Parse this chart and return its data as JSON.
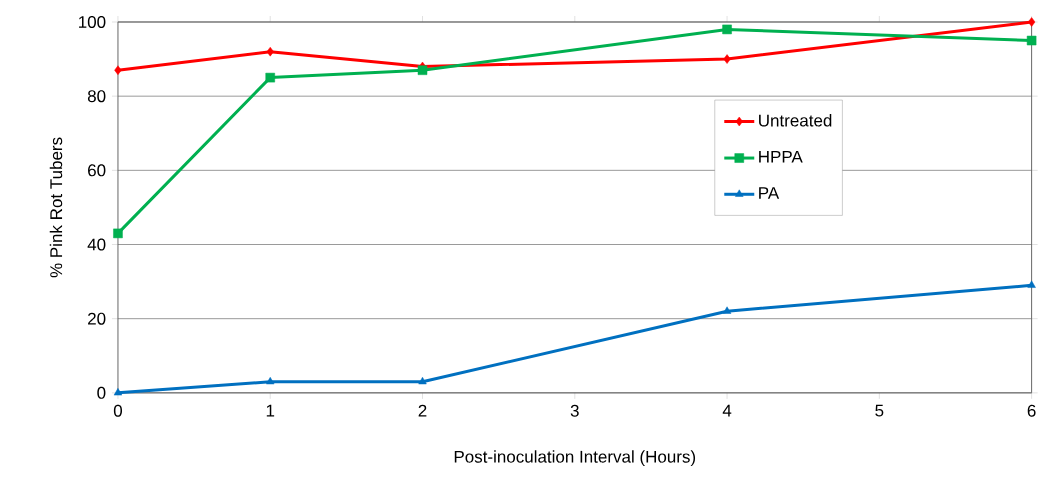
{
  "chart_data": {
    "type": "line",
    "xlabel": "Post-inoculation Interval (Hours)",
    "ylabel": "% Pink Rot Tubers",
    "x": [
      0,
      1,
      2,
      4,
      6
    ],
    "series": [
      {
        "name": "Untreated",
        "color": "#ff0000",
        "marker": "diamond",
        "values": [
          87,
          92,
          88,
          90,
          100
        ]
      },
      {
        "name": "HPPA",
        "color": "#00b050",
        "marker": "square",
        "values": [
          43,
          85,
          87,
          98,
          95
        ]
      },
      {
        "name": "PA",
        "color": "#0070c0",
        "marker": "triangle",
        "values": [
          0,
          3,
          3,
          22,
          29
        ]
      }
    ],
    "xlim": [
      0,
      6
    ],
    "ylim": [
      0,
      100
    ],
    "xticks": [
      0,
      1,
      2,
      3,
      4,
      5,
      6
    ],
    "yticks": [
      0,
      20,
      40,
      60,
      80,
      100
    ],
    "grid": "y",
    "legend": "right",
    "line_style": "solid"
  }
}
